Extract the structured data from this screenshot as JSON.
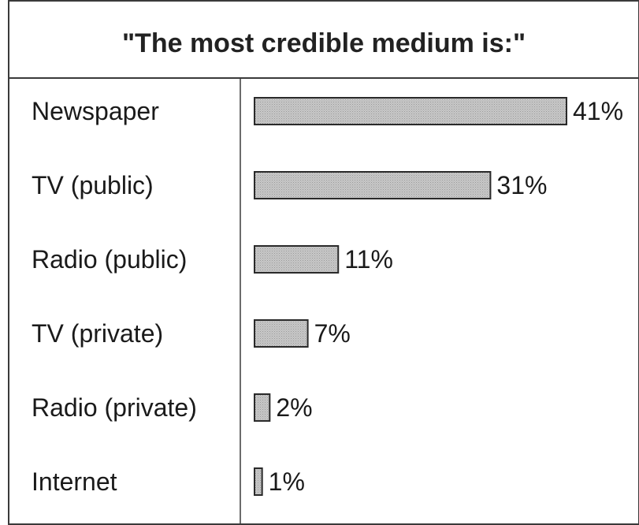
{
  "chart_data": {
    "type": "bar",
    "orientation": "horizontal",
    "title": "\"The most credible medium is:\"",
    "categories": [
      "Newspaper",
      "TV (public)",
      "Radio (public)",
      "TV (private)",
      "Radio (private)",
      "Internet"
    ],
    "values": [
      41,
      31,
      11,
      7,
      2,
      1
    ],
    "value_labels": [
      "41%",
      "31%",
      "11%",
      "7%",
      "2%",
      "1%"
    ],
    "xlim": [
      0,
      41
    ],
    "grid": false,
    "legend": "none",
    "bar_color": "#c4c4c4",
    "border_color": "#2a2a2a"
  }
}
